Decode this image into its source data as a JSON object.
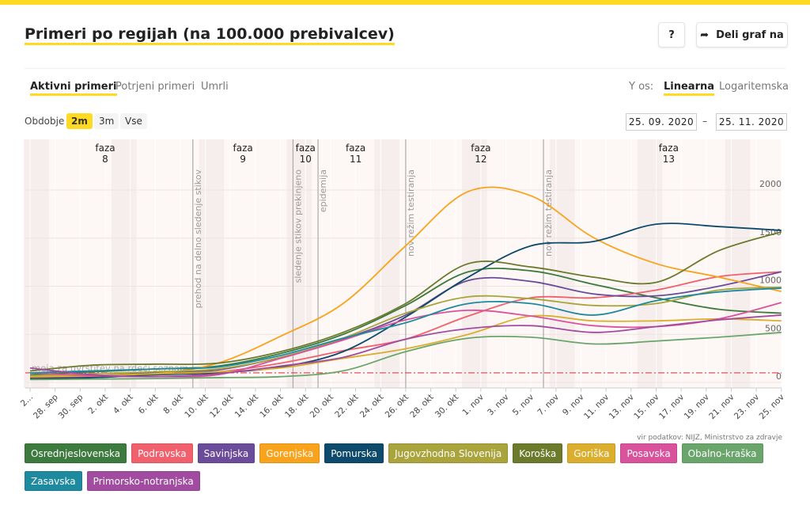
{
  "header": {
    "title": "Primeri po regijah (na 100.000 prebivalcev)",
    "help_label": "?",
    "share_label": "Deli graf na"
  },
  "tabs": [
    {
      "label": "Aktivni primeri",
      "active": true
    },
    {
      "label": "Potrjeni primeri"
    },
    {
      "label": "Umrli"
    }
  ],
  "yaxis_mode": {
    "label": "Y os:",
    "options": [
      "Linearna",
      "Logaritemska"
    ],
    "selected": "Linearna"
  },
  "period": {
    "label": "Obdobje",
    "options": [
      "2m",
      "3m",
      "Vse"
    ],
    "selected": "2m",
    "from": "25. 09. 2020",
    "separator": "–",
    "to": "25. 11. 2020"
  },
  "source": "vir podatkov: NIJZ, Ministrstvo za zdravje",
  "chart_data": {
    "type": "line",
    "start_date": "2020-09-26",
    "x": [
      "2020-09-26",
      "2020-10-01",
      "2020-10-06",
      "2020-10-11",
      "2020-10-16",
      "2020-10-21",
      "2020-10-26",
      "2020-10-31",
      "2020-11-05",
      "2020-11-10",
      "2020-11-15",
      "2020-11-20",
      "2020-11-25"
    ],
    "ylim": [
      0,
      2050
    ],
    "yticks": [
      0,
      500,
      1000,
      1500,
      2000
    ],
    "xtick_labels": [
      "2...",
      "28. sep",
      "30. sep",
      "2. okt",
      "4. okt",
      "6. okt",
      "8. okt",
      "10. okt",
      "12. okt",
      "14. okt",
      "16. okt",
      "18. okt",
      "20. okt",
      "22. okt",
      "24. okt",
      "26. okt",
      "28. okt",
      "30. okt",
      "1. nov",
      "3. nov",
      "5. nov",
      "7. nov",
      "9. nov",
      "11. nov",
      "13. nov",
      "15. nov",
      "17. nov",
      "19. nov",
      "21. nov",
      "23. nov",
      "25. nov"
    ],
    "grid": true,
    "threshold": {
      "value": 100,
      "label": "meja za uvrstitev na rdeči seznam",
      "color": "#e0525e"
    },
    "phases": [
      {
        "label": "faza",
        "num": "8",
        "center": "2020-10-02"
      },
      {
        "label": "faza",
        "num": "9",
        "center": "2020-10-13"
      },
      {
        "label": "faza",
        "num": "10",
        "center": "2020-10-18"
      },
      {
        "label": "faza",
        "num": "11",
        "center": "2020-10-22"
      },
      {
        "label": "faza",
        "num": "12",
        "center": "2020-11-01"
      },
      {
        "label": "faza",
        "num": "13",
        "center": "2020-11-16"
      }
    ],
    "events": [
      {
        "date": "2020-10-09",
        "label": "prehod na delno sledenje stikov"
      },
      {
        "date": "2020-10-17",
        "label": "sledenje stikov prekinjeno"
      },
      {
        "date": "2020-10-19",
        "label": "epidemija"
      },
      {
        "date": "2020-10-26",
        "label": "nov režim testiranja"
      },
      {
        "date": "2020-11-06",
        "label": "nov režim testiranja"
      }
    ],
    "series": [
      {
        "name": "Osrednjeslovenska",
        "color": "#3d7a3e",
        "values": [
          80,
          110,
          140,
          170,
          300,
          500,
          800,
          1150,
          1160,
          1020,
          880,
          760,
          720
        ]
      },
      {
        "name": "Podravska",
        "color": "#f0606d",
        "values": [
          50,
          60,
          80,
          110,
          200,
          330,
          450,
          690,
          880,
          880,
          960,
          1100,
          1150
        ]
      },
      {
        "name": "Savinjska",
        "color": "#6b4c9a",
        "values": [
          60,
          70,
          100,
          130,
          260,
          450,
          700,
          1060,
          1050,
          920,
          900,
          1000,
          1150
        ]
      },
      {
        "name": "Gorenjska",
        "color": "#f9a21b",
        "values": [
          60,
          70,
          90,
          200,
          480,
          820,
          1420,
          1985,
          1940,
          1505,
          1235,
          1095,
          945
        ]
      },
      {
        "name": "Pomurska",
        "color": "#0e4a6b",
        "values": [
          40,
          50,
          80,
          100,
          160,
          320,
          680,
          1095,
          1420,
          1465,
          1645,
          1620,
          1580
        ]
      },
      {
        "name": "Jugovzhodna Slovenija",
        "color": "#a9a43c",
        "values": [
          70,
          90,
          110,
          140,
          260,
          460,
          720,
          890,
          870,
          800,
          820,
          960,
          990
        ]
      },
      {
        "name": "Koroška",
        "color": "#6b7a2b",
        "values": [
          120,
          180,
          190,
          200,
          320,
          520,
          820,
          1235,
          1200,
          1095,
          1040,
          1370,
          1565
        ]
      },
      {
        "name": "Goriška",
        "color": "#dcae2e",
        "values": [
          60,
          70,
          90,
          110,
          150,
          250,
          350,
          500,
          690,
          640,
          640,
          660,
          640
        ]
      },
      {
        "name": "Posavska",
        "color": "#d9529c",
        "values": [
          100,
          70,
          60,
          80,
          250,
          440,
          650,
          750,
          690,
          590,
          580,
          660,
          830
        ]
      },
      {
        "name": "Obalno-kraška",
        "color": "#6aa56b",
        "values": [
          30,
          35,
          40,
          50,
          60,
          120,
          320,
          460,
          470,
          400,
          430,
          470,
          520
        ]
      },
      {
        "name": "Zasavska",
        "color": "#1d8aa0",
        "values": [
          100,
          120,
          140,
          160,
          280,
          460,
          620,
          820,
          820,
          700,
          850,
          940,
          980
        ]
      },
      {
        "name": "Primorsko-notranjska",
        "color": "#a14ca1",
        "values": [
          150,
          80,
          60,
          90,
          170,
          260,
          450,
          560,
          590,
          520,
          580,
          650,
          700
        ]
      }
    ]
  }
}
